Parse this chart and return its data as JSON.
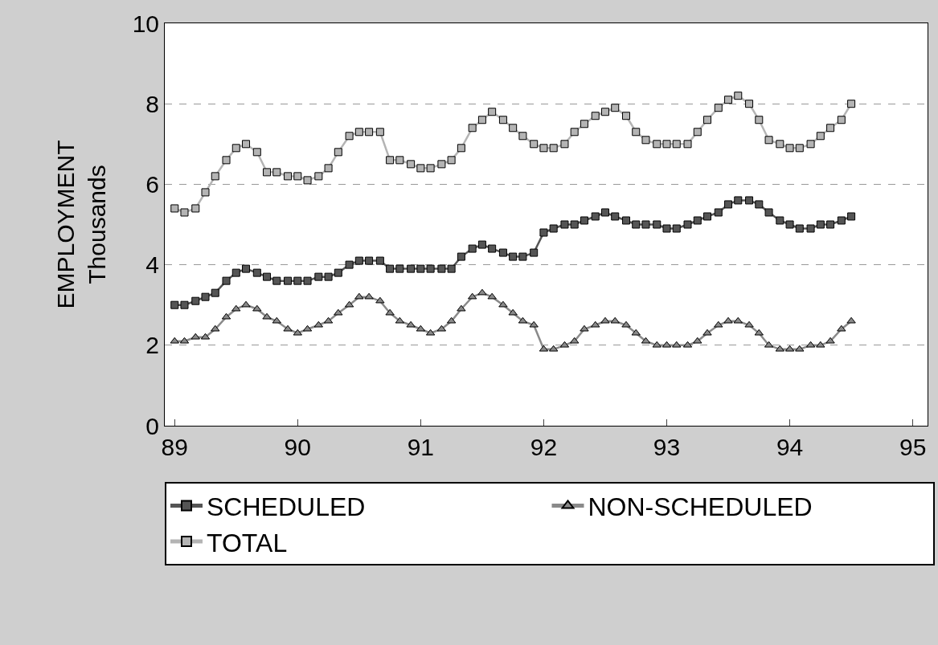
{
  "chart_data": {
    "type": "line",
    "ylabel": "EMPLOYMENT\nThousands",
    "x": [
      89,
      89.08,
      89.17,
      89.25,
      89.33,
      89.42,
      89.5,
      89.58,
      89.67,
      89.75,
      89.83,
      89.92,
      90,
      90.08,
      90.17,
      90.25,
      90.33,
      90.42,
      90.5,
      90.58,
      90.67,
      90.75,
      90.83,
      90.92,
      91,
      91.08,
      91.17,
      91.25,
      91.33,
      91.42,
      91.5,
      91.58,
      91.67,
      91.75,
      91.83,
      91.92,
      92,
      92.08,
      92.17,
      92.25,
      92.33,
      92.42,
      92.5,
      92.58,
      92.67,
      92.75,
      92.83,
      92.92,
      93,
      93.08,
      93.17,
      93.25,
      93.33,
      93.42,
      93.5,
      93.58,
      93.67,
      93.75,
      93.83,
      93.92,
      94,
      94.08,
      94.17,
      94.25,
      94.33,
      94.42,
      94.5
    ],
    "series": [
      {
        "name": "SCHEDULED",
        "color": "#555555",
        "marker": "square",
        "values": [
          3.0,
          3.0,
          3.1,
          3.2,
          3.3,
          3.6,
          3.8,
          3.9,
          3.8,
          3.7,
          3.6,
          3.6,
          3.6,
          3.6,
          3.7,
          3.7,
          3.8,
          4.0,
          4.1,
          4.1,
          4.1,
          3.9,
          3.9,
          3.9,
          3.9,
          3.9,
          3.9,
          3.9,
          4.2,
          4.4,
          4.5,
          4.4,
          4.3,
          4.2,
          4.2,
          4.3,
          4.8,
          4.9,
          5.0,
          5.0,
          5.1,
          5.2,
          5.3,
          5.2,
          5.1,
          5.0,
          5.0,
          5.0,
          4.9,
          4.9,
          5.0,
          5.1,
          5.2,
          5.3,
          5.5,
          5.6,
          5.6,
          5.5,
          5.3,
          5.1,
          5.0,
          4.9,
          4.9,
          5.0,
          5.0,
          5.1,
          5.2
        ]
      },
      {
        "name": "NON-SCHEDULED",
        "color": "#8a8a8a",
        "marker": "triangle",
        "values": [
          2.1,
          2.1,
          2.2,
          2.2,
          2.4,
          2.7,
          2.9,
          3.0,
          2.9,
          2.7,
          2.6,
          2.4,
          2.3,
          2.4,
          2.5,
          2.6,
          2.8,
          3.0,
          3.2,
          3.2,
          3.1,
          2.8,
          2.6,
          2.5,
          2.4,
          2.3,
          2.4,
          2.6,
          2.9,
          3.2,
          3.3,
          3.2,
          3.0,
          2.8,
          2.6,
          2.5,
          1.9,
          1.9,
          2.0,
          2.1,
          2.4,
          2.5,
          2.6,
          2.6,
          2.5,
          2.3,
          2.1,
          2.0,
          2.0,
          2.0,
          2.0,
          2.1,
          2.3,
          2.5,
          2.6,
          2.6,
          2.5,
          2.3,
          2.0,
          1.9,
          1.9,
          1.9,
          2.0,
          2.0,
          2.1,
          2.4,
          2.6
        ]
      },
      {
        "name": "TOTAL",
        "color": "#b4b4b4",
        "marker": "square",
        "values": [
          5.4,
          5.3,
          5.4,
          5.8,
          6.2,
          6.6,
          6.9,
          7.0,
          6.8,
          6.3,
          6.3,
          6.2,
          6.2,
          6.1,
          6.2,
          6.4,
          6.8,
          7.2,
          7.3,
          7.3,
          7.3,
          6.6,
          6.6,
          6.5,
          6.4,
          6.4,
          6.5,
          6.6,
          6.9,
          7.4,
          7.6,
          7.8,
          7.6,
          7.4,
          7.2,
          7.0,
          6.9,
          6.9,
          7.0,
          7.3,
          7.5,
          7.7,
          7.8,
          7.9,
          7.7,
          7.3,
          7.1,
          7.0,
          7.0,
          7.0,
          7.0,
          7.3,
          7.6,
          7.9,
          8.1,
          8.2,
          8.0,
          7.6,
          7.1,
          7.0,
          6.9,
          6.9,
          7.0,
          7.2,
          7.4,
          7.6,
          8.0
        ]
      }
    ],
    "xlim": [
      88.92,
      95.12
    ],
    "xticks": [
      89,
      90,
      91,
      92,
      93,
      94,
      95
    ],
    "ylim": [
      0,
      10
    ],
    "yticks": [
      0,
      2,
      4,
      6,
      8,
      10
    ],
    "grid": "y",
    "legend": "bottom",
    "line_style": "solid"
  }
}
